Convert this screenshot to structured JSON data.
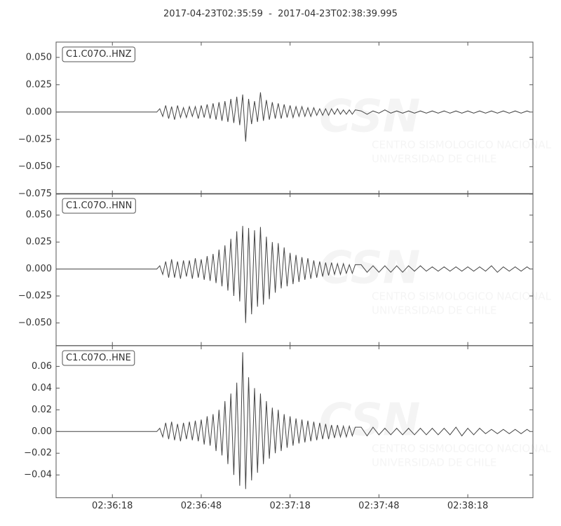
{
  "title": "2017-04-23T02:35:59  -  2017-04-23T02:38:39.995",
  "watermark": {
    "logo": "CSN",
    "lines": [
      "CENTRO SISMOLOGICO NACIONAL",
      "UNIVERSIDAD DE CHILE"
    ]
  },
  "chart_data": [
    {
      "type": "line",
      "label": "C1.C07O..HNZ",
      "color": "#444444",
      "xlim": [
        "02:35:59",
        "02:38:40"
      ],
      "ylim": [
        -0.075,
        0.064
      ],
      "yticks": [
        {
          "value": -0.075,
          "label": "−0.075"
        },
        {
          "value": -0.05,
          "label": "−0.050"
        },
        {
          "value": -0.025,
          "label": "−0.025"
        },
        {
          "value": 0,
          "label": "0.000"
        },
        {
          "value": 0.025,
          "label": "0.025"
        },
        {
          "value": 0.05,
          "label": "0.050"
        }
      ],
      "x": [
        "02:35:59",
        "02:36:33",
        "02:36:34",
        "02:36:35",
        "02:36:36",
        "02:36:37",
        "02:36:38",
        "02:36:39",
        "02:36:40",
        "02:36:41",
        "02:36:42",
        "02:36:43",
        "02:36:44",
        "02:36:45",
        "02:36:46",
        "02:36:47",
        "02:36:48",
        "02:36:49",
        "02:36:50",
        "02:36:51",
        "02:36:52",
        "02:36:53",
        "02:36:54",
        "02:36:55",
        "02:36:56",
        "02:36:57",
        "02:36:58",
        "02:36:59",
        "02:37:00",
        "02:37:01",
        "02:37:02",
        "02:37:03",
        "02:37:04",
        "02:37:05",
        "02:37:06",
        "02:37:07",
        "02:37:08",
        "02:37:09",
        "02:37:10",
        "02:37:11",
        "02:37:12",
        "02:37:13",
        "02:37:14",
        "02:37:15",
        "02:37:16",
        "02:37:17",
        "02:37:18",
        "02:37:19",
        "02:37:20",
        "02:37:21",
        "02:37:22",
        "02:37:23",
        "02:37:24",
        "02:37:25",
        "02:37:26",
        "02:37:27",
        "02:37:28",
        "02:37:29",
        "02:37:30",
        "02:37:31",
        "02:37:32",
        "02:37:33",
        "02:37:34",
        "02:37:35",
        "02:37:36",
        "02:37:37",
        "02:37:38",
        "02:37:39",
        "02:37:40",
        "02:37:42",
        "02:37:44",
        "02:37:46",
        "02:37:48",
        "02:37:50",
        "02:37:52",
        "02:37:54",
        "02:37:56",
        "02:37:58",
        "02:38:00",
        "02:38:02",
        "02:38:04",
        "02:38:06",
        "02:38:08",
        "02:38:10",
        "02:38:12",
        "02:38:14",
        "02:38:16",
        "02:38:18",
        "02:38:20",
        "02:38:22",
        "02:38:24",
        "02:38:26",
        "02:38:28",
        "02:38:30",
        "02:38:32",
        "02:38:34",
        "02:38:36",
        "02:38:38",
        "02:38:39"
      ],
      "values": [
        0,
        0,
        0.003,
        -0.004,
        0.006,
        -0.006,
        0.005,
        -0.007,
        0.006,
        -0.005,
        0.004,
        -0.005,
        0.005,
        -0.004,
        0.005,
        -0.006,
        0.006,
        -0.005,
        0.007,
        -0.006,
        0.008,
        -0.007,
        0.009,
        -0.008,
        0.01,
        -0.009,
        0.012,
        -0.01,
        0.014,
        -0.012,
        0.016,
        -0.027,
        0.012,
        -0.011,
        0.01,
        -0.009,
        0.018,
        -0.008,
        0.011,
        -0.007,
        0.009,
        -0.006,
        0.008,
        -0.006,
        0.007,
        -0.005,
        0.006,
        -0.005,
        0.005,
        -0.004,
        0.005,
        -0.004,
        0.004,
        -0.004,
        0.004,
        -0.003,
        0.003,
        -0.003,
        0.003,
        -0.003,
        0.003,
        -0.002,
        0.003,
        -0.002,
        0.002,
        -0.002,
        0.002,
        -0.002,
        0.002,
        0.001,
        -0.002,
        0.001,
        -0.001,
        0.002,
        -0.001,
        0.001,
        -0.001,
        0.001,
        -0.001,
        0.001,
        -0.001,
        0.001,
        -0.001,
        0.001,
        -0.001,
        0.001,
        -0.001,
        0.001,
        -0.001,
        0.001,
        -0.001,
        0.001,
        -0.001,
        0.001,
        -0.001,
        0.001,
        -0.001,
        0.001,
        0
      ]
    },
    {
      "type": "line",
      "label": "C1.C07O..HNN",
      "color": "#444444",
      "xlim": [
        "02:35:59",
        "02:38:40"
      ],
      "ylim": [
        -0.071,
        0.07
      ],
      "yticks": [
        {
          "value": -0.05,
          "label": "−0.050"
        },
        {
          "value": -0.025,
          "label": "−0.025"
        },
        {
          "value": 0,
          "label": "0.000"
        },
        {
          "value": 0.025,
          "label": "0.025"
        },
        {
          "value": 0.05,
          "label": "0.050"
        }
      ],
      "x": [
        "02:35:59",
        "02:36:33",
        "02:36:34",
        "02:36:35",
        "02:36:36",
        "02:36:37",
        "02:36:38",
        "02:36:39",
        "02:36:40",
        "02:36:41",
        "02:36:42",
        "02:36:43",
        "02:36:44",
        "02:36:45",
        "02:36:46",
        "02:36:47",
        "02:36:48",
        "02:36:49",
        "02:36:50",
        "02:36:51",
        "02:36:52",
        "02:36:53",
        "02:36:54",
        "02:36:55",
        "02:36:56",
        "02:36:57",
        "02:36:58",
        "02:36:59",
        "02:37:00",
        "02:37:01",
        "02:37:02",
        "02:37:03",
        "02:37:04",
        "02:37:05",
        "02:37:06",
        "02:37:07",
        "02:37:08",
        "02:37:09",
        "02:37:10",
        "02:37:11",
        "02:37:12",
        "02:37:13",
        "02:37:14",
        "02:37:15",
        "02:37:16",
        "02:37:17",
        "02:37:18",
        "02:37:19",
        "02:37:20",
        "02:37:21",
        "02:37:22",
        "02:37:23",
        "02:37:24",
        "02:37:25",
        "02:37:26",
        "02:37:27",
        "02:37:28",
        "02:37:29",
        "02:37:30",
        "02:37:31",
        "02:37:32",
        "02:37:33",
        "02:37:34",
        "02:37:35",
        "02:37:36",
        "02:37:37",
        "02:37:38",
        "02:37:39",
        "02:37:40",
        "02:37:42",
        "02:37:44",
        "02:37:46",
        "02:37:48",
        "02:37:50",
        "02:37:52",
        "02:37:54",
        "02:37:56",
        "02:37:58",
        "02:38:00",
        "02:38:02",
        "02:38:04",
        "02:38:06",
        "02:38:08",
        "02:38:10",
        "02:38:12",
        "02:38:14",
        "02:38:16",
        "02:38:18",
        "02:38:20",
        "02:38:22",
        "02:38:24",
        "02:38:26",
        "02:38:28",
        "02:38:30",
        "02:38:32",
        "02:38:34",
        "02:38:36",
        "02:38:38",
        "02:38:39"
      ],
      "values": [
        0,
        0,
        0.003,
        -0.005,
        0.007,
        -0.008,
        0.009,
        -0.008,
        0.007,
        -0.009,
        0.008,
        -0.007,
        0.008,
        -0.009,
        0.01,
        -0.008,
        0.009,
        -0.01,
        0.012,
        -0.011,
        0.014,
        -0.013,
        0.018,
        -0.016,
        0.022,
        -0.02,
        0.028,
        -0.025,
        0.035,
        -0.03,
        0.04,
        -0.05,
        0.038,
        -0.042,
        0.036,
        -0.035,
        0.039,
        -0.033,
        0.03,
        -0.028,
        0.025,
        -0.022,
        0.024,
        -0.018,
        0.02,
        -0.016,
        0.015,
        -0.014,
        0.013,
        -0.012,
        0.011,
        -0.01,
        0.01,
        -0.009,
        0.008,
        -0.008,
        0.007,
        -0.007,
        0.006,
        -0.006,
        0.006,
        -0.005,
        0.005,
        -0.005,
        0.005,
        -0.004,
        0.004,
        -0.004,
        0.004,
        0.004,
        -0.003,
        0.003,
        -0.003,
        0.003,
        -0.003,
        0.003,
        -0.003,
        0.003,
        -0.002,
        0.003,
        -0.002,
        0.002,
        -0.002,
        0.002,
        -0.002,
        0.002,
        -0.002,
        0.002,
        -0.002,
        0.002,
        -0.002,
        0.003,
        -0.003,
        0.002,
        -0.002,
        0.002,
        -0.002,
        0.002,
        0
      ]
    },
    {
      "type": "line",
      "label": "C1.C07O..HNE",
      "color": "#444444",
      "xlim": [
        "02:35:59",
        "02:38:40"
      ],
      "ylim": [
        -0.061,
        0.079
      ],
      "yticks": [
        {
          "value": -0.04,
          "label": "−0.04"
        },
        {
          "value": -0.02,
          "label": "−0.02"
        },
        {
          "value": 0,
          "label": "0.00"
        },
        {
          "value": 0.02,
          "label": "0.02"
        },
        {
          "value": 0.04,
          "label": "0.04"
        },
        {
          "value": 0.06,
          "label": "0.06"
        }
      ],
      "xticks": [
        "02:36:18",
        "02:36:48",
        "02:37:18",
        "02:37:48",
        "02:38:18"
      ],
      "x": [
        "02:35:59",
        "02:36:33",
        "02:36:34",
        "02:36:35",
        "02:36:36",
        "02:36:37",
        "02:36:38",
        "02:36:39",
        "02:36:40",
        "02:36:41",
        "02:36:42",
        "02:36:43",
        "02:36:44",
        "02:36:45",
        "02:36:46",
        "02:36:47",
        "02:36:48",
        "02:36:49",
        "02:36:50",
        "02:36:51",
        "02:36:52",
        "02:36:53",
        "02:36:54",
        "02:36:55",
        "02:36:56",
        "02:36:57",
        "02:36:58",
        "02:36:59",
        "02:37:00",
        "02:37:01",
        "02:37:02",
        "02:37:03",
        "02:37:04",
        "02:37:05",
        "02:37:06",
        "02:37:07",
        "02:37:08",
        "02:37:09",
        "02:37:10",
        "02:37:11",
        "02:37:12",
        "02:37:13",
        "02:37:14",
        "02:37:15",
        "02:37:16",
        "02:37:17",
        "02:37:18",
        "02:37:19",
        "02:37:20",
        "02:37:21",
        "02:37:22",
        "02:37:23",
        "02:37:24",
        "02:37:25",
        "02:37:26",
        "02:37:27",
        "02:37:28",
        "02:37:29",
        "02:37:30",
        "02:37:31",
        "02:37:32",
        "02:37:33",
        "02:37:34",
        "02:37:35",
        "02:37:36",
        "02:37:37",
        "02:37:38",
        "02:37:39",
        "02:37:40",
        "02:37:42",
        "02:37:44",
        "02:37:46",
        "02:37:48",
        "02:37:50",
        "02:37:52",
        "02:37:54",
        "02:37:56",
        "02:37:58",
        "02:38:00",
        "02:38:02",
        "02:38:04",
        "02:38:06",
        "02:38:08",
        "02:38:10",
        "02:38:12",
        "02:38:14",
        "02:38:16",
        "02:38:18",
        "02:38:20",
        "02:38:22",
        "02:38:24",
        "02:38:26",
        "02:38:28",
        "02:38:30",
        "02:38:32",
        "02:38:34",
        "02:38:36",
        "02:38:38",
        "02:38:39"
      ],
      "values": [
        0,
        0,
        0.003,
        -0.005,
        0.008,
        -0.007,
        0.009,
        -0.008,
        0.007,
        -0.009,
        0.008,
        -0.007,
        0.009,
        -0.008,
        0.01,
        -0.009,
        0.011,
        -0.012,
        0.014,
        -0.013,
        0.016,
        -0.018,
        0.02,
        -0.022,
        0.028,
        -0.03,
        0.035,
        -0.04,
        0.045,
        -0.05,
        0.073,
        -0.053,
        0.05,
        -0.045,
        0.04,
        -0.038,
        0.035,
        -0.03,
        0.028,
        -0.025,
        0.022,
        -0.02,
        0.02,
        -0.018,
        0.016,
        -0.015,
        0.014,
        -0.013,
        0.012,
        -0.011,
        0.011,
        -0.01,
        0.01,
        -0.009,
        0.009,
        -0.008,
        0.008,
        -0.007,
        0.007,
        -0.007,
        0.006,
        -0.006,
        0.006,
        -0.005,
        0.005,
        -0.005,
        0.005,
        -0.004,
        0.004,
        0.004,
        -0.004,
        0.004,
        -0.003,
        0.003,
        -0.003,
        0.003,
        -0.003,
        0.003,
        -0.003,
        0.003,
        -0.003,
        0.003,
        -0.003,
        0.003,
        -0.003,
        0.004,
        -0.004,
        0.003,
        -0.003,
        0.003,
        -0.002,
        0.002,
        -0.002,
        0.002,
        -0.002,
        0.002,
        -0.002,
        0.002,
        0
      ]
    }
  ]
}
